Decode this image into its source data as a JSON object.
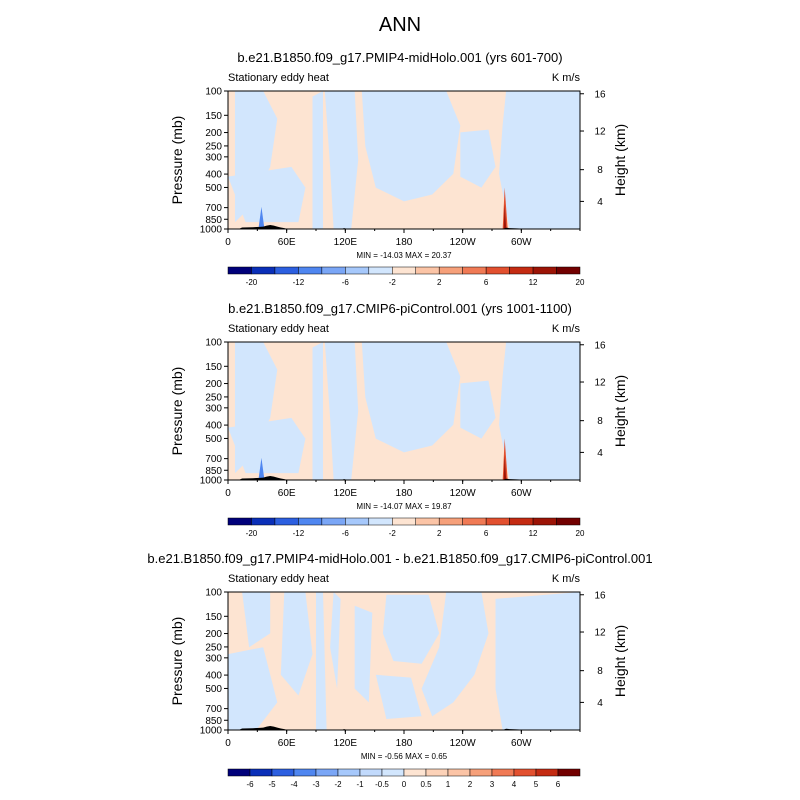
{
  "page_title": "ANN",
  "chart_data": [
    {
      "type": "heatmap",
      "title": "b.e21.B1850.f09_g17.PMIP4-midHolo.001 (yrs 601-700)",
      "left_label": "Stationary eddy heat",
      "units": "K m/s",
      "ylabel": "Pressure (mb)",
      "y2label": "Height (km)",
      "pressure_ticks": [
        "100",
        "150",
        "200",
        "250",
        "300",
        "400",
        "500",
        "700",
        "850",
        "1000"
      ],
      "height_ticks": [
        "16",
        "12",
        "8",
        "4"
      ],
      "x_ticks": [
        "0",
        "60E",
        "120E",
        "180",
        "120W",
        "60W"
      ],
      "stats": "MIN = -14.03  MAX =  20.37",
      "colorbar_labels": [
        "-20",
        "-12",
        "-6",
        "-2",
        "2",
        "6",
        "12",
        "20"
      ],
      "colorbar_colors": [
        "#00007a",
        "#0a2fb8",
        "#2c5fe0",
        "#4f86f0",
        "#7aa6f6",
        "#a6c8fb",
        "#d2e6fd",
        "#fde4d2",
        "#fbc4a6",
        "#f6a07a",
        "#f07a55",
        "#e2502f",
        "#c42b12",
        "#9c1406",
        "#720000"
      ]
    },
    {
      "type": "heatmap",
      "title": "b.e21.B1850.f09_g17.CMIP6-piControl.001 (yrs 1001-1100)",
      "left_label": "Stationary eddy heat",
      "units": "K m/s",
      "ylabel": "Pressure (mb)",
      "y2label": "Height (km)",
      "pressure_ticks": [
        "100",
        "150",
        "200",
        "250",
        "300",
        "400",
        "500",
        "700",
        "850",
        "1000"
      ],
      "height_ticks": [
        "16",
        "12",
        "8",
        "4"
      ],
      "x_ticks": [
        "0",
        "60E",
        "120E",
        "180",
        "120W",
        "60W"
      ],
      "stats": "MIN = -14.07  MAX =  19.87",
      "colorbar_labels": [
        "-20",
        "-12",
        "-6",
        "-2",
        "2",
        "6",
        "12",
        "20"
      ],
      "colorbar_colors": [
        "#00007a",
        "#0a2fb8",
        "#2c5fe0",
        "#4f86f0",
        "#7aa6f6",
        "#a6c8fb",
        "#d2e6fd",
        "#fde4d2",
        "#fbc4a6",
        "#f6a07a",
        "#f07a55",
        "#e2502f",
        "#c42b12",
        "#9c1406",
        "#720000"
      ]
    },
    {
      "type": "heatmap",
      "title": "b.e21.B1850.f09_g17.PMIP4-midHolo.001 - b.e21.B1850.f09_g17.CMIP6-piControl.001",
      "left_label": "Stationary eddy heat",
      "units": "K m/s",
      "ylabel": "Pressure (mb)",
      "y2label": "Height (km)",
      "pressure_ticks": [
        "100",
        "150",
        "200",
        "250",
        "300",
        "400",
        "500",
        "700",
        "850",
        "1000"
      ],
      "height_ticks": [
        "16",
        "12",
        "8",
        "4"
      ],
      "x_ticks": [
        "0",
        "60E",
        "120E",
        "180",
        "120W",
        "60W"
      ],
      "stats": "MIN =  -0.56  MAX =   0.65",
      "colorbar_labels": [
        "-6",
        "-5",
        "-4",
        "-3",
        "-2",
        "-1",
        "-0.5",
        "0",
        "0.5",
        "1",
        "2",
        "3",
        "4",
        "5",
        "6"
      ],
      "colorbar_colors": [
        "#00007a",
        "#0a2fb8",
        "#2c5fe0",
        "#4f86f0",
        "#7aa6f6",
        "#a6c8fb",
        "#c2dafc",
        "#d2e6fd",
        "#fde4d2",
        "#fcd2b8",
        "#fbc4a6",
        "#f6a07a",
        "#f07a55",
        "#e2502f",
        "#c42b12",
        "#720000"
      ]
    }
  ]
}
